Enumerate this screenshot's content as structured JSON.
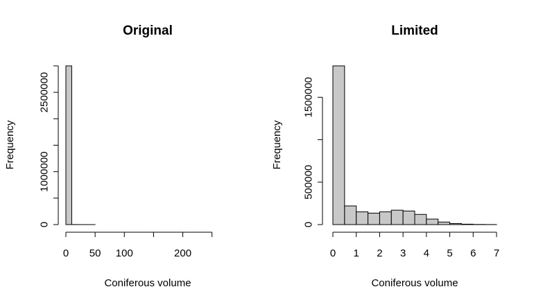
{
  "chart_data": [
    {
      "type": "bar",
      "title": "Original",
      "xlabel": "Coniferous volume",
      "ylabel": "Frequency",
      "bin_edges": [
        0,
        10,
        20,
        30,
        40,
        50,
        60,
        70,
        80,
        90,
        100,
        110,
        120,
        130,
        140,
        150,
        160,
        170,
        180,
        190,
        200,
        210,
        220,
        230,
        240,
        250,
        260,
        270,
        280
      ],
      "values": [
        3000000,
        1200,
        300,
        150,
        80,
        50,
        40,
        30,
        25,
        20,
        15,
        12,
        10,
        8,
        6,
        5,
        4,
        3,
        3,
        2,
        2,
        2,
        1,
        1,
        1,
        1,
        1,
        1
      ],
      "xticks": [
        0,
        50,
        100,
        200
      ],
      "xtick_labels": [
        "0",
        "50",
        "100",
        "200"
      ],
      "extra_xtick_marks": [
        150,
        250
      ],
      "xlim": [
        0,
        280
      ],
      "yticks": [
        0,
        500000,
        1000000,
        1500000,
        2000000,
        2500000,
        3000000
      ],
      "ytick_labels": [
        "0",
        "",
        "1000000",
        "",
        "",
        "2500000",
        ""
      ],
      "ylim": [
        0,
        3000000
      ],
      "bar_color": "#c8c8c8",
      "grid": false,
      "legend": "none"
    },
    {
      "type": "bar",
      "title": "Limited",
      "xlabel": "Coniferous volume",
      "ylabel": "Frequency",
      "bin_edges": [
        0,
        0.5,
        1,
        1.5,
        2,
        2.5,
        3,
        3.5,
        4,
        4.5,
        5,
        5.5,
        6,
        6.5,
        7
      ],
      "values": [
        1870000,
        220000,
        150000,
        135000,
        150000,
        170000,
        160000,
        120000,
        65000,
        30000,
        12000,
        5000,
        2000,
        800
      ],
      "xticks": [
        0,
        1,
        2,
        3,
        4,
        5,
        6,
        7
      ],
      "xtick_labels": [
        "0",
        "1",
        "2",
        "3",
        "4",
        "5",
        "6",
        "7"
      ],
      "extra_xtick_marks": [],
      "xlim": [
        0,
        7
      ],
      "yticks": [
        0,
        500000,
        1000000,
        1500000
      ],
      "ytick_labels": [
        "0",
        "500000",
        "",
        "1500000"
      ],
      "ylim": [
        0,
        1870000
      ],
      "bar_color": "#c8c8c8",
      "grid": false,
      "legend": "none"
    }
  ]
}
